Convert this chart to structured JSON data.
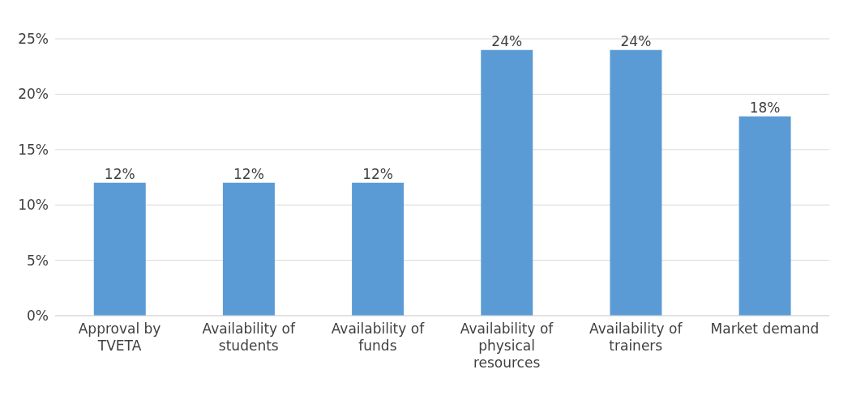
{
  "chart_data": {
    "type": "bar",
    "categories": [
      "Approval by TVETA",
      "Availability of students",
      "Availability of funds",
      "Availability of physical resources",
      "Availability of trainers",
      "Market demand"
    ],
    "values": [
      12,
      12,
      12,
      24,
      24,
      18
    ],
    "value_labels": [
      "12%",
      "12%",
      "12%",
      "24%",
      "24%",
      "18%"
    ],
    "color": "#5b9bd5",
    "ylim": [
      0,
      25
    ],
    "yticks": [
      {
        "value": 0,
        "label": "0%"
      },
      {
        "value": 5,
        "label": "5%"
      },
      {
        "value": 10,
        "label": "10%"
      },
      {
        "value": 15,
        "label": "15%"
      },
      {
        "value": 20,
        "label": "20%"
      },
      {
        "value": 25,
        "label": "25%"
      }
    ],
    "grid": "y"
  }
}
